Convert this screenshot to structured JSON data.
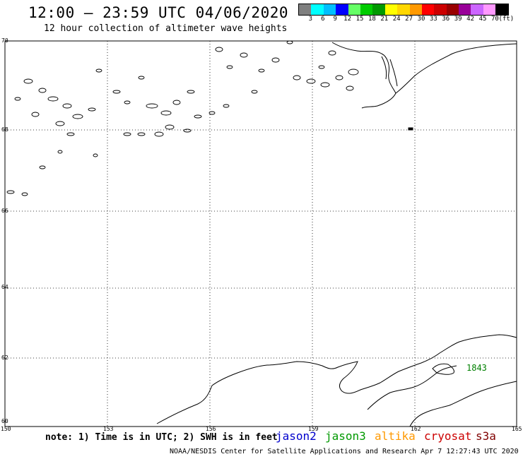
{
  "header": {
    "title": "12:00 – 23:59 UTC 04/06/2020",
    "subtitle": "12 hour collection of altimeter wave heights"
  },
  "legend": {
    "unit": "(ft)",
    "ticks": [
      "3",
      "6",
      "9",
      "12",
      "15",
      "18",
      "21",
      "24",
      "27",
      "30",
      "33",
      "36",
      "39",
      "42",
      "45",
      "70"
    ],
    "colors": [
      "#7f7f7f",
      "#00ffff",
      "#00bfff",
      "#0000ff",
      "#66ff66",
      "#00cc00",
      "#009900",
      "#ffff00",
      "#ffd700",
      "#ff9900",
      "#ff0000",
      "#cc0000",
      "#990000",
      "#990099",
      "#cc66ff",
      "#ff99ff",
      "#000000"
    ]
  },
  "axes": {
    "lat_labels": [
      "70",
      "68",
      "66",
      "64",
      "62",
      "60"
    ],
    "lon_labels": [
      "150",
      "153",
      "156",
      "159",
      "162",
      "165"
    ]
  },
  "map_label": {
    "text": "1843",
    "color": "#008000"
  },
  "footer": {
    "note": "note: 1) Time is in UTC; 2) SWH is in feet",
    "satellites": [
      {
        "name": "jason2",
        "color": "#0000cc"
      },
      {
        "name": "jason3",
        "color": "#009900"
      },
      {
        "name": "altika",
        "color": "#ff9900"
      },
      {
        "name": "cryosat",
        "color": "#cc0000"
      },
      {
        "name": "s3a",
        "color": "#800000"
      }
    ],
    "credit": "NOAA/NESDIS Center for Satellite Applications and Research   Apr  7 12:27:43 UTC 2020"
  }
}
